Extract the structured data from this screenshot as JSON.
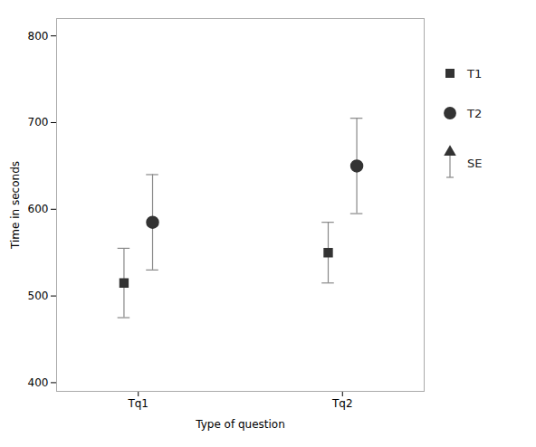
{
  "chart_data": {
    "type": "scatter",
    "categories": [
      "Tq1",
      "Tq2"
    ],
    "series": [
      {
        "name": "T1",
        "marker": "square",
        "color": "#333333",
        "values": [
          515,
          550
        ],
        "errors": [
          40,
          35
        ]
      },
      {
        "name": "T2",
        "marker": "circle",
        "color": "#333333",
        "values": [
          585,
          650
        ],
        "errors": [
          55,
          55
        ]
      }
    ],
    "error_label": "SE",
    "xlabel": "Type of question",
    "ylabel": "Time in seconds",
    "ylim": [
      390,
      820
    ],
    "yticks": [
      400,
      500,
      600,
      700,
      800
    ],
    "grid": false,
    "legend": "right"
  }
}
